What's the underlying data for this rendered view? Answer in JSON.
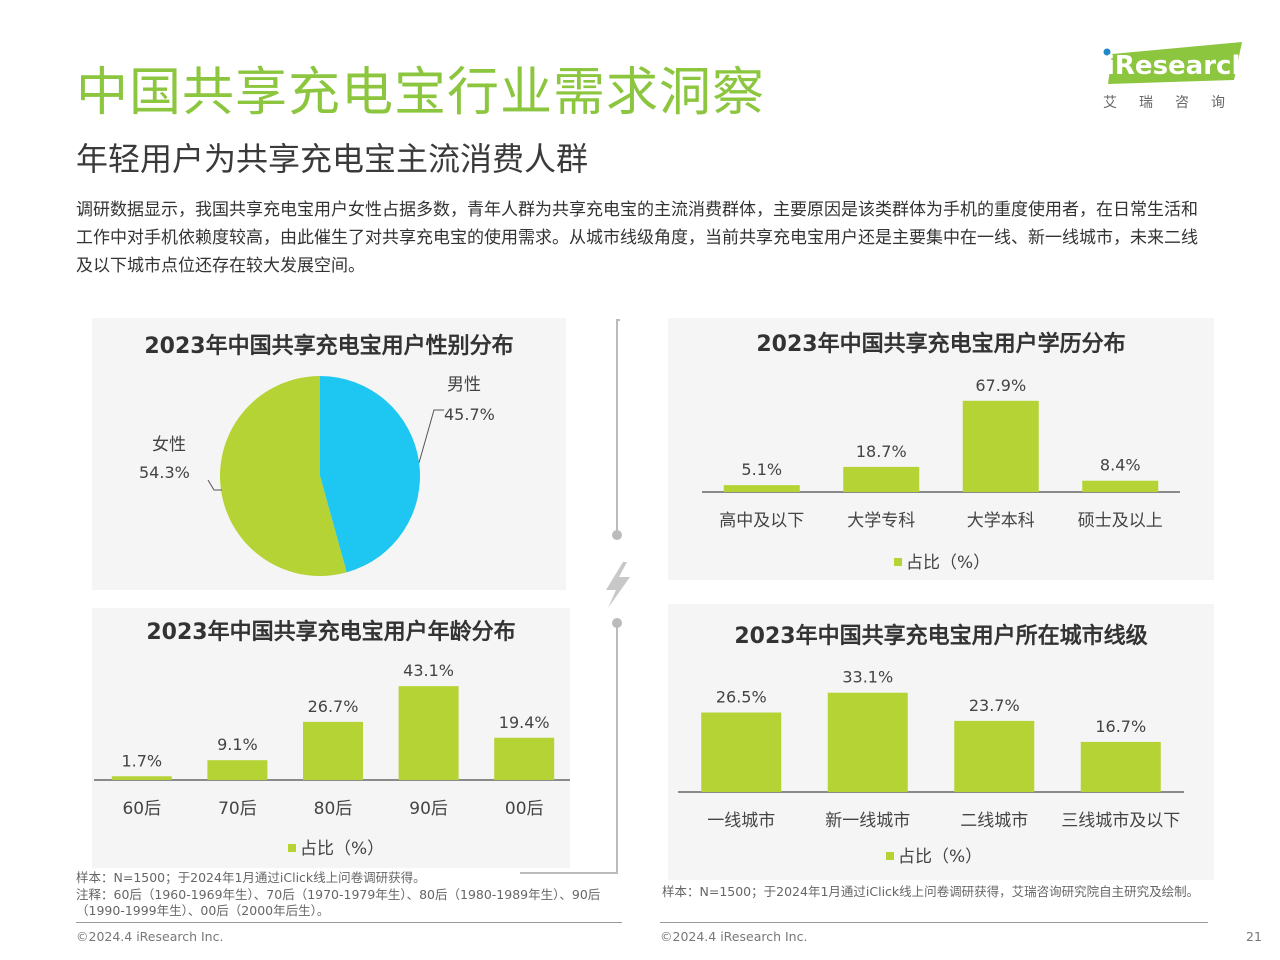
{
  "header": {
    "title": "中国共享充电宝行业需求洞察",
    "subtitle": "年轻用户为共享充电宝主流消费人群",
    "intro": "调研数据显示，我国共享充电宝用户女性占据多数，青年人群为共享充电宝的主流消费群体，主要原因是该类群体为手机的重度使用者，在日常生活和工作中对手机依赖度较高，由此催生了对共享充电宝的使用需求。从城市线级角度，当前共享充电宝用户还是主要集中在一线、新一线城市，未来二线及以下城市点位还存在较大发展空间。"
  },
  "logo": {
    "text": "iResearch",
    "cn": "艾瑞咨询"
  },
  "colors": {
    "accent": "#8cc63f",
    "bar": "#b5d335",
    "pie_female": "#b5d335",
    "pie_male": "#1ec6f2"
  },
  "chart_data": [
    {
      "type": "pie",
      "title": "2023年中国共享充电宝用户性别分布",
      "slices": [
        {
          "label": "男性",
          "value": 45.7,
          "value_label": "45.7%"
        },
        {
          "label": "女性",
          "value": 54.3,
          "value_label": "54.3%"
        }
      ]
    },
    {
      "type": "bar",
      "title": "2023年中国共享充电宝用户学历分布",
      "categories": [
        "高中及以下",
        "大学专科",
        "大学本科",
        "硕士及以上"
      ],
      "values": [
        5.1,
        18.7,
        67.9,
        8.4
      ],
      "value_labels": [
        "5.1%",
        "18.7%",
        "67.9%",
        "8.4%"
      ],
      "legend": "占比（%）",
      "ylim": [
        0,
        70
      ]
    },
    {
      "type": "bar",
      "title": "2023年中国共享充电宝用户年龄分布",
      "categories": [
        "60后",
        "70后",
        "80后",
        "90后",
        "00后"
      ],
      "values": [
        1.7,
        9.1,
        26.7,
        43.1,
        19.4
      ],
      "value_labels": [
        "1.7%",
        "9.1%",
        "26.7%",
        "43.1%",
        "19.4%"
      ],
      "legend": "占比（%）",
      "ylim": [
        0,
        45
      ]
    },
    {
      "type": "bar",
      "title": "2023年中国共享充电宝用户所在城市线级",
      "categories": [
        "一线城市",
        "新一线城市",
        "二线城市",
        "三线城市及以下"
      ],
      "values": [
        26.5,
        33.1,
        23.7,
        16.7
      ],
      "value_labels": [
        "26.5%",
        "33.1%",
        "23.7%",
        "16.7%"
      ],
      "legend": "占比（%）",
      "ylim": [
        0,
        35
      ]
    }
  ],
  "notes": {
    "left_sample": "样本：N=1500；于2024年1月通过iClick线上问卷调研获得。",
    "left_note": "注释：60后（1960-1969年生）、70后（1970-1979年生）、80后（1980-1989年生）、90后（1990-1999年生）、00后（2000年后生）。",
    "right_sample": "样本：N=1500；于2024年1月通过iClick线上问卷调研获得，艾瑞咨询研究院自主研究及绘制。"
  },
  "footer": {
    "copyright_left": "©2024.4 iResearch Inc.",
    "copyright_right": "©2024.4 iResearch Inc.",
    "page": "21"
  }
}
